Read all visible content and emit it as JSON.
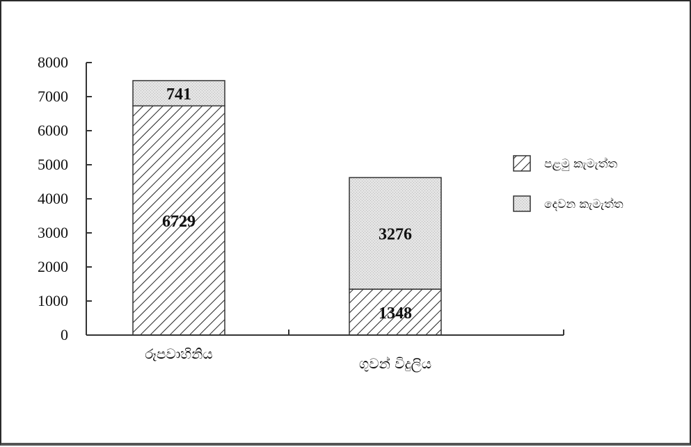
{
  "chart_data": {
    "type": "bar",
    "stacked": true,
    "categories": [
      "රූපවාහිනිය",
      "ගුවන් විදුලිය"
    ],
    "series": [
      {
        "name": "පළමු කැමැත්ත",
        "values": [
          6729,
          1348
        ],
        "pattern": "diagonal-hatch",
        "color": "#ffffff"
      },
      {
        "name": "දෙවන කැමැත්ත",
        "values": [
          741,
          3276
        ],
        "pattern": "dotted-fill",
        "color": "#e6e6e6"
      }
    ],
    "ylim": [
      0,
      8000
    ],
    "yticks": [
      0,
      1000,
      2000,
      3000,
      4000,
      5000,
      6000,
      7000,
      8000
    ],
    "title": "",
    "xlabel": "",
    "ylabel": "",
    "grid": false,
    "legend_position": "right"
  }
}
